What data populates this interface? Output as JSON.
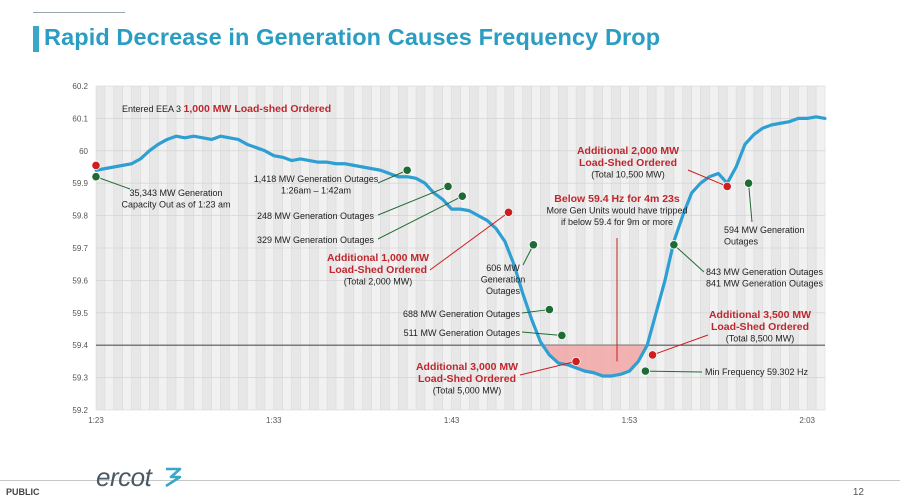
{
  "header": {
    "title": "Rapid Decrease in Generation Causes Frequency Drop"
  },
  "footer": {
    "classification": "PUBLIC",
    "brand": "ercot",
    "page_number": "12"
  },
  "colors": {
    "title": "#2a9dc2",
    "line": "#2e9fd3",
    "red_dot": "#cc1f1f",
    "green_dot": "#1f6b35",
    "red_text": "#c0272d",
    "shade": "#f2a7a7"
  },
  "chart_data": {
    "type": "line",
    "xlabel": "",
    "ylabel": "",
    "ylim": [
      59.2,
      60.2
    ],
    "xlim": [
      0,
      41
    ],
    "x_ticks": [
      {
        "x": 0,
        "label": "1:23"
      },
      {
        "x": 10,
        "label": "1:33"
      },
      {
        "x": 20,
        "label": "1:43"
      },
      {
        "x": 30,
        "label": "1:53"
      },
      {
        "x": 40,
        "label": "2:03"
      }
    ],
    "y_ticks": [
      "60.2",
      "60.1",
      "60",
      "59.9",
      "59.8",
      "59.7",
      "59.6",
      "59.5",
      "59.4",
      "59.3",
      "59.2"
    ],
    "y_tick_values": [
      60.2,
      60.1,
      60.0,
      59.9,
      59.8,
      59.7,
      59.6,
      59.5,
      59.4,
      59.3,
      59.2
    ],
    "threshold": 59.4,
    "grid": true,
    "series": [
      {
        "x": [
          0,
          0.5,
          1,
          1.5,
          2,
          2.5,
          3,
          3.5,
          4,
          4.5,
          5,
          5.5,
          6,
          6.5,
          7,
          7.5,
          8,
          8.5,
          9,
          9.5,
          10,
          10.5,
          11,
          11.5,
          12,
          12.5,
          13,
          13.5,
          14,
          14.5,
          15,
          15.5,
          16,
          16.5,
          17,
          17.5,
          18,
          18.5,
          19,
          19.5,
          20,
          20.5,
          21,
          21.5,
          22,
          22.5,
          23,
          23.5,
          24,
          24.5,
          25,
          25.5,
          26,
          26.5,
          27,
          27.5,
          28,
          28.5,
          29,
          29.5,
          30,
          30.5,
          31,
          31.5,
          32,
          32.5,
          33,
          33.5,
          34,
          34.5,
          35,
          35.5,
          36,
          36.5,
          37,
          37.5,
          38,
          38.5,
          39,
          39.5,
          40,
          40.5,
          41
        ],
        "y": [
          59.94,
          59.945,
          59.95,
          59.955,
          59.96,
          59.975,
          60.0,
          60.02,
          60.035,
          60.045,
          60.04,
          60.045,
          60.04,
          60.035,
          60.045,
          60.04,
          60.035,
          60.02,
          60.01,
          60.0,
          59.985,
          59.98,
          59.97,
          59.975,
          59.97,
          59.965,
          59.965,
          59.96,
          59.96,
          59.955,
          59.95,
          59.945,
          59.94,
          59.93,
          59.92,
          59.92,
          59.915,
          59.9,
          59.87,
          59.85,
          59.82,
          59.82,
          59.815,
          59.8,
          59.785,
          59.76,
          59.72,
          59.65,
          59.56,
          59.48,
          59.41,
          59.37,
          59.345,
          59.34,
          59.33,
          59.32,
          59.315,
          59.305,
          59.305,
          59.31,
          59.32,
          59.35,
          59.4,
          59.5,
          59.6,
          59.72,
          59.8,
          59.87,
          59.9,
          59.92,
          59.93,
          59.9,
          59.95,
          60.02,
          60.05,
          60.07,
          60.08,
          60.085,
          60.09,
          60.1,
          60.1,
          60.105,
          60.1
        ]
      }
    ],
    "markers": [
      {
        "x": 0,
        "y": 59.955,
        "color": "red"
      },
      {
        "x": 0,
        "y": 59.92,
        "color": "green"
      },
      {
        "x": 17.5,
        "y": 59.94,
        "color": "green"
      },
      {
        "x": 19.8,
        "y": 59.89,
        "color": "green"
      },
      {
        "x": 20.6,
        "y": 59.86,
        "color": "green"
      },
      {
        "x": 23.2,
        "y": 59.81,
        "color": "red"
      },
      {
        "x": 24.6,
        "y": 59.71,
        "color": "green"
      },
      {
        "x": 25.5,
        "y": 59.51,
        "color": "green"
      },
      {
        "x": 26.2,
        "y": 59.43,
        "color": "green"
      },
      {
        "x": 27.0,
        "y": 59.35,
        "color": "red"
      },
      {
        "x": 30.9,
        "y": 59.32,
        "color": "green"
      },
      {
        "x": 31.3,
        "y": 59.37,
        "color": "red"
      },
      {
        "x": 32.5,
        "y": 59.71,
        "color": "green"
      },
      {
        "x": 35.5,
        "y": 59.89,
        "color": "red"
      },
      {
        "x": 36.7,
        "y": 59.9,
        "color": "green"
      }
    ],
    "annotations": [
      {
        "lines": [
          {
            "t": "Entered EEA 3 ",
            "c": "dark"
          },
          {
            "t": "1,000 MW Load-shed Ordered",
            "c": "red",
            "b": true
          }
        ],
        "inline": true
      },
      {
        "lines": [
          {
            "t": "35,343 MW Generation",
            "c": "dark"
          },
          {
            "t": "Capacity Out as of 1:23 am",
            "c": "dark"
          }
        ]
      },
      {
        "lines": [
          {
            "t": "1,418 MW Generation Outages",
            "c": "dark"
          },
          {
            "t": "1:26am – 1:42am",
            "c": "dark"
          }
        ]
      },
      {
        "lines": [
          {
            "t": "248 MW Generation Outages",
            "c": "dark"
          }
        ]
      },
      {
        "lines": [
          {
            "t": "329 MW Generation Outages",
            "c": "dark"
          }
        ]
      },
      {
        "lines": [
          {
            "t": "Additional 1,000 MW",
            "c": "red",
            "b": true
          },
          {
            "t": "Load-Shed Ordered",
            "c": "red",
            "b": true
          },
          {
            "t": "(Total 2,000 MW)",
            "c": "dark"
          }
        ]
      },
      {
        "lines": [
          {
            "t": "606 MW",
            "c": "dark"
          },
          {
            "t": "Generation",
            "c": "dark"
          },
          {
            "t": "Outages",
            "c": "dark"
          }
        ]
      },
      {
        "lines": [
          {
            "t": "688 MW Generation Outages",
            "c": "dark"
          }
        ]
      },
      {
        "lines": [
          {
            "t": "511 MW Generation Outages",
            "c": "dark"
          }
        ]
      },
      {
        "lines": [
          {
            "t": "Additional 3,000 MW",
            "c": "red",
            "b": true
          },
          {
            "t": "Load-Shed Ordered",
            "c": "red",
            "b": true
          },
          {
            "t": "(Total 5,000 MW)",
            "c": "dark"
          }
        ]
      },
      {
        "lines": [
          {
            "t": "Additional 2,000 MW",
            "c": "red",
            "b": true
          },
          {
            "t": "Load-Shed Ordered",
            "c": "red",
            "b": true
          },
          {
            "t": "(Total 10,500 MW)",
            "c": "dark"
          }
        ]
      },
      {
        "lines": [
          {
            "t": "Below 59.4 Hz for 4m 23s",
            "c": "red",
            "b": true
          },
          {
            "t": "More Gen Units would have tripped",
            "c": "dark"
          },
          {
            "t": "if below 59.4 for 9m or more",
            "c": "dark"
          }
        ]
      },
      {
        "lines": [
          {
            "t": "594 MW Generation",
            "c": "dark"
          },
          {
            "t": "Outages",
            "c": "dark"
          }
        ]
      },
      {
        "lines": [
          {
            "t": "843 MW Generation Outages",
            "c": "dark"
          },
          {
            "t": "841 MW Generation Outages",
            "c": "dark"
          }
        ]
      },
      {
        "lines": [
          {
            "t": "Additional 3,500 MW",
            "c": "red",
            "b": true
          },
          {
            "t": "Load-Shed Ordered",
            "c": "red",
            "b": true
          },
          {
            "t": "(Total 8,500 MW)",
            "c": "dark"
          }
        ]
      },
      {
        "lines": [
          {
            "t": "Min Frequency 59.302 Hz",
            "c": "dark"
          }
        ]
      }
    ]
  }
}
